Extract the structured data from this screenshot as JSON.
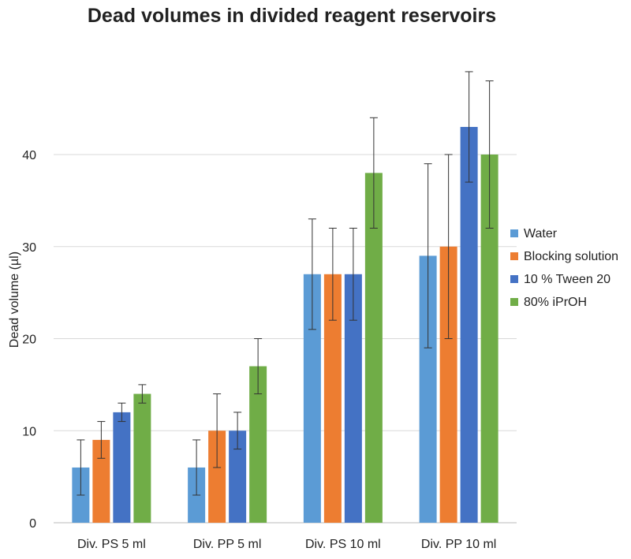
{
  "chart_data": {
    "type": "bar",
    "title": "Dead volumes in divided reagent reservoirs",
    "xlabel": "",
    "ylabel": "Dead volume (µl)",
    "ylim": [
      0,
      50
    ],
    "yticks": [
      0,
      10,
      20,
      30,
      40
    ],
    "grid": true,
    "legend_position": "right",
    "categories": [
      "Div. PS 5 ml",
      "Div. PP 5 ml",
      "Div. PS 10 ml",
      "Div. PP 10 ml"
    ],
    "series": [
      {
        "name": "Water",
        "color": "#5b9bd5",
        "values": [
          6,
          6,
          27,
          29
        ],
        "error_low": [
          3,
          3,
          21,
          19
        ],
        "error_high": [
          9,
          9,
          33,
          39
        ]
      },
      {
        "name": "Blocking solution",
        "color": "#ed7d31",
        "values": [
          9,
          10,
          27,
          30
        ],
        "error_low": [
          7,
          6,
          22,
          20
        ],
        "error_high": [
          11,
          14,
          32,
          40
        ]
      },
      {
        "name": "10 % Tween 20",
        "color": "#4472c4",
        "values": [
          12,
          10,
          27,
          43
        ],
        "error_low": [
          11,
          8,
          22,
          37
        ],
        "error_high": [
          13,
          12,
          32,
          49
        ]
      },
      {
        "name": "80% iPrOH",
        "color": "#70ad47",
        "values": [
          14,
          17,
          38,
          40
        ],
        "error_low": [
          13,
          14,
          32,
          32
        ],
        "error_high": [
          15,
          20,
          44,
          48
        ]
      }
    ]
  }
}
